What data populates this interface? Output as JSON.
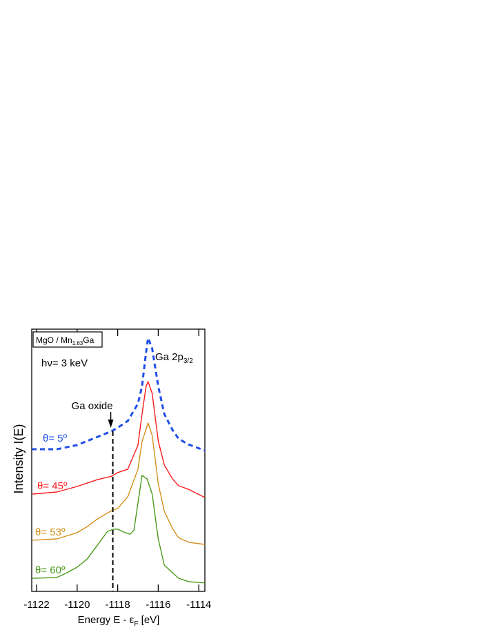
{
  "chart_data": {
    "type": "line",
    "xlabel": "Energy   E - ε",
    "xlabel_sub": "F",
    "xlabel_unit": " [eV]",
    "ylabel": "Intensity  I(E)",
    "xlim": [
      -1122.24,
      -1113.7
    ],
    "ylim": [
      0,
      100
    ],
    "x_ticks": [
      -1122,
      -1120,
      -1118,
      -1116,
      -1114
    ],
    "x_tick_labels": [
      "-1122",
      "-1120",
      "-1118",
      "-1116",
      "-1114"
    ],
    "grid": false,
    "sample_label": {
      "main": "MgO / Mn",
      "sub": "1.63",
      "tail": "Ga"
    },
    "photon_label": "hν= 3 keV",
    "peak_label": {
      "main": "Ga 2p",
      "sub": "3/2"
    },
    "oxide_annotation": {
      "text": "Ga oxide",
      "x": -1118.24
    },
    "series": [
      {
        "name": "θ= 5º",
        "color": "#1f4fe8",
        "style": "dashed",
        "x": [
          -1122.24,
          -1121,
          -1120,
          -1119,
          -1118.3,
          -1118,
          -1117.5,
          -1117,
          -1116.8,
          -1116.6,
          -1116.5,
          -1116.3,
          -1116,
          -1115.7,
          -1115.3,
          -1115,
          -1114.5,
          -1113.7
        ],
        "y": [
          54.2,
          54.2,
          55.8,
          58.9,
          61.1,
          62.4,
          65.0,
          71.6,
          78.2,
          91.3,
          96.6,
          92.6,
          78.2,
          67.6,
          61.6,
          58.2,
          56.0,
          53.7
        ]
      },
      {
        "name": "θ= 45º",
        "color": "#ff1a1a",
        "style": "solid",
        "x": [
          -1122.2,
          -1121,
          -1120,
          -1119,
          -1118.3,
          -1118,
          -1117.5,
          -1117,
          -1116.8,
          -1116.6,
          -1116.5,
          -1116.3,
          -1116,
          -1115.7,
          -1115.3,
          -1115,
          -1114.5,
          -1113.7
        ],
        "y": [
          37.1,
          37.9,
          40.0,
          42.6,
          43.9,
          45.3,
          46.6,
          55.8,
          67.6,
          78.2,
          80.0,
          75.5,
          57.4,
          48.2,
          42.9,
          40.3,
          38.9,
          35.8
        ]
      },
      {
        "name": "θ= 53º",
        "color": "#d4901a",
        "style": "solid",
        "x": [
          -1122.2,
          -1121,
          -1120,
          -1119.5,
          -1119,
          -1118.3,
          -1118,
          -1117.5,
          -1117,
          -1116.8,
          -1116.5,
          -1116.3,
          -1116,
          -1115.7,
          -1115.3,
          -1115,
          -1114.5,
          -1113.7
        ],
        "y": [
          19.5,
          20.0,
          22.4,
          24.7,
          27.6,
          30.8,
          31.6,
          36.1,
          46.6,
          57.1,
          64.2,
          59.5,
          41.1,
          30.5,
          24.0,
          20.5,
          18.7,
          17.9
        ]
      },
      {
        "name": "θ= 60º",
        "color": "#4a9a1a",
        "style": "solid",
        "x": [
          -1122.2,
          -1121,
          -1120.5,
          -1120,
          -1119.5,
          -1119,
          -1118.5,
          -1118.2,
          -1118,
          -1117.7,
          -1117.4,
          -1117.2,
          -1117,
          -1116.8,
          -1116.55,
          -1116.3,
          -1116,
          -1115.7,
          -1115.3,
          -1115,
          -1114.5,
          -1113.7
        ],
        "y": [
          5.0,
          5.3,
          7.1,
          9.2,
          12.4,
          17.6,
          22.9,
          23.7,
          23.7,
          22.6,
          21.8,
          23.2,
          33.7,
          44.2,
          42.9,
          37.1,
          20.0,
          10.0,
          7.1,
          5.0,
          3.7,
          3.2
        ]
      }
    ]
  }
}
